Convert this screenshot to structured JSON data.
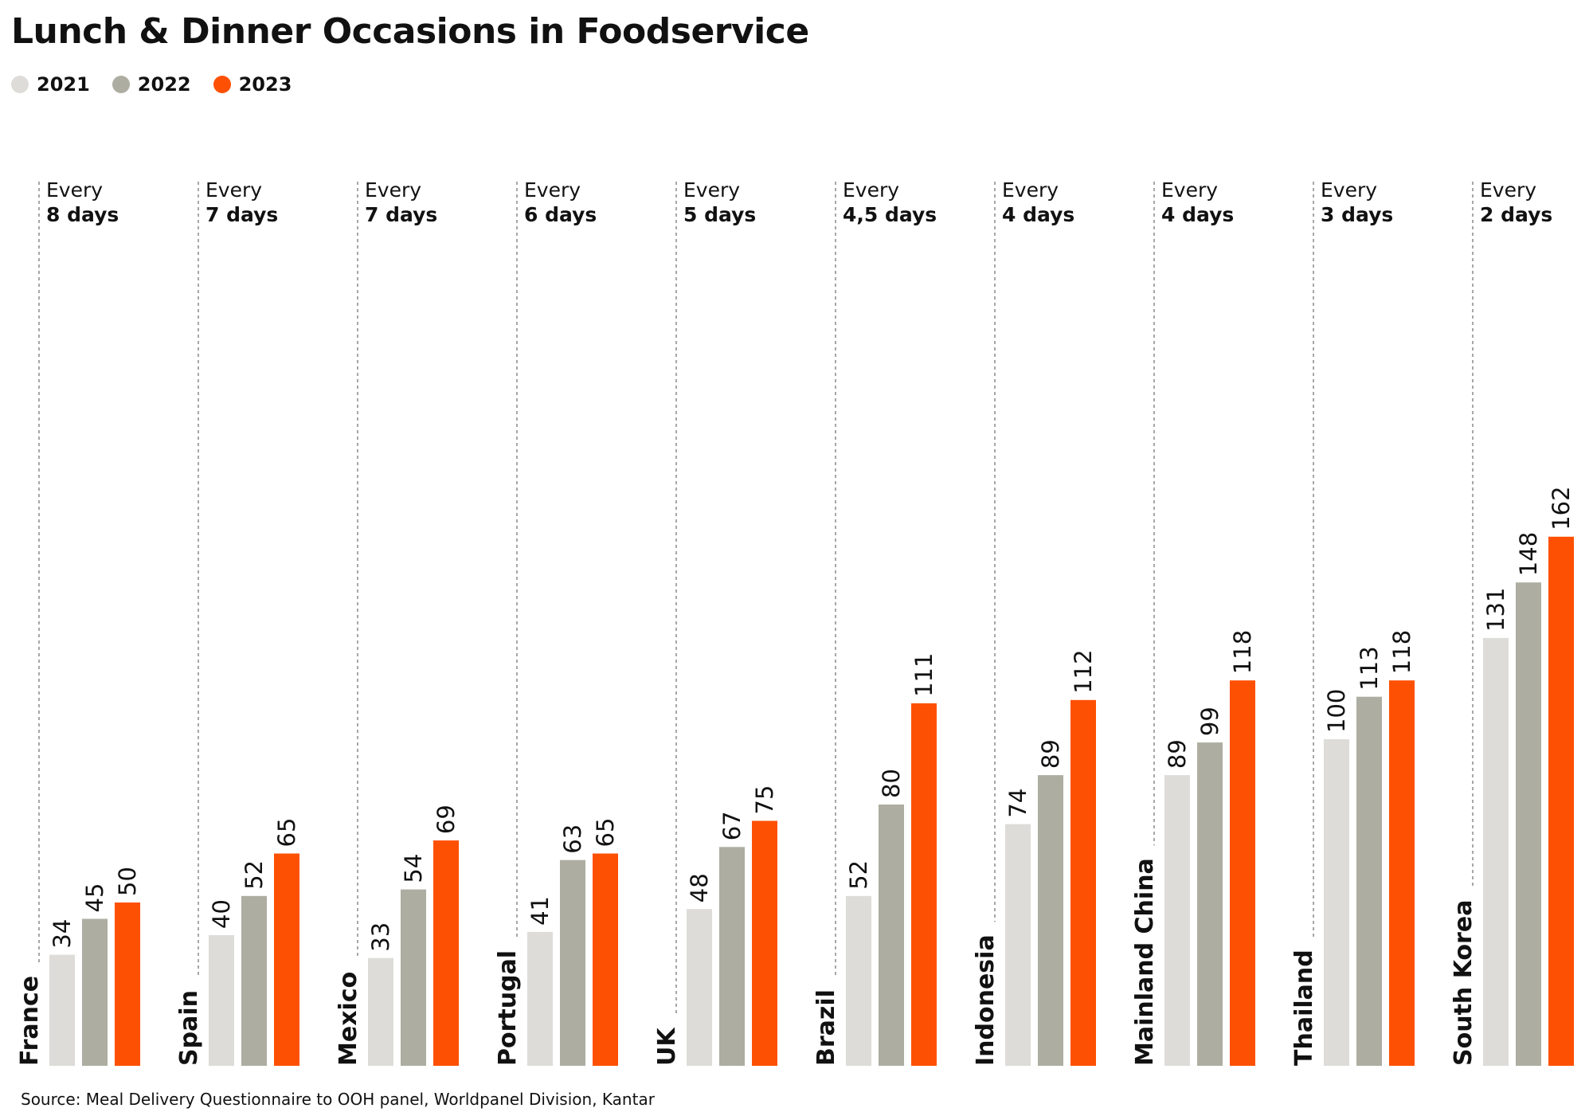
{
  "chart_data": {
    "type": "bar",
    "title": "Lunch & Dinner Occasions in Foodservice",
    "categories": [
      "France",
      "Spain",
      "Mexico",
      "Portugal",
      "UK",
      "Brazil",
      "Indonesia",
      "Mainland China",
      "Thailand",
      "South Korea"
    ],
    "frequency_prefix": "Every",
    "frequencies": [
      "8 days",
      "7 days",
      "7 days",
      "6 days",
      "5 days",
      "4,5 days",
      "4 days",
      "4 days",
      "3 days",
      "2 days"
    ],
    "series": [
      {
        "name": "2021",
        "color": "#dddcd8",
        "values": [
          34,
          40,
          33,
          41,
          48,
          52,
          74,
          89,
          100,
          131
        ]
      },
      {
        "name": "2022",
        "color": "#adada1",
        "values": [
          45,
          52,
          54,
          63,
          67,
          80,
          89,
          99,
          113,
          148
        ]
      },
      {
        "name": "2023",
        "color": "#fe5002",
        "values": [
          50,
          65,
          69,
          65,
          75,
          111,
          112,
          118,
          118,
          162
        ]
      }
    ],
    "source": "Source: Meal Delivery Questionnaire to OOH panel, Worldpanel Division, Kantar",
    "grid": false,
    "legend_position": "top-left"
  }
}
